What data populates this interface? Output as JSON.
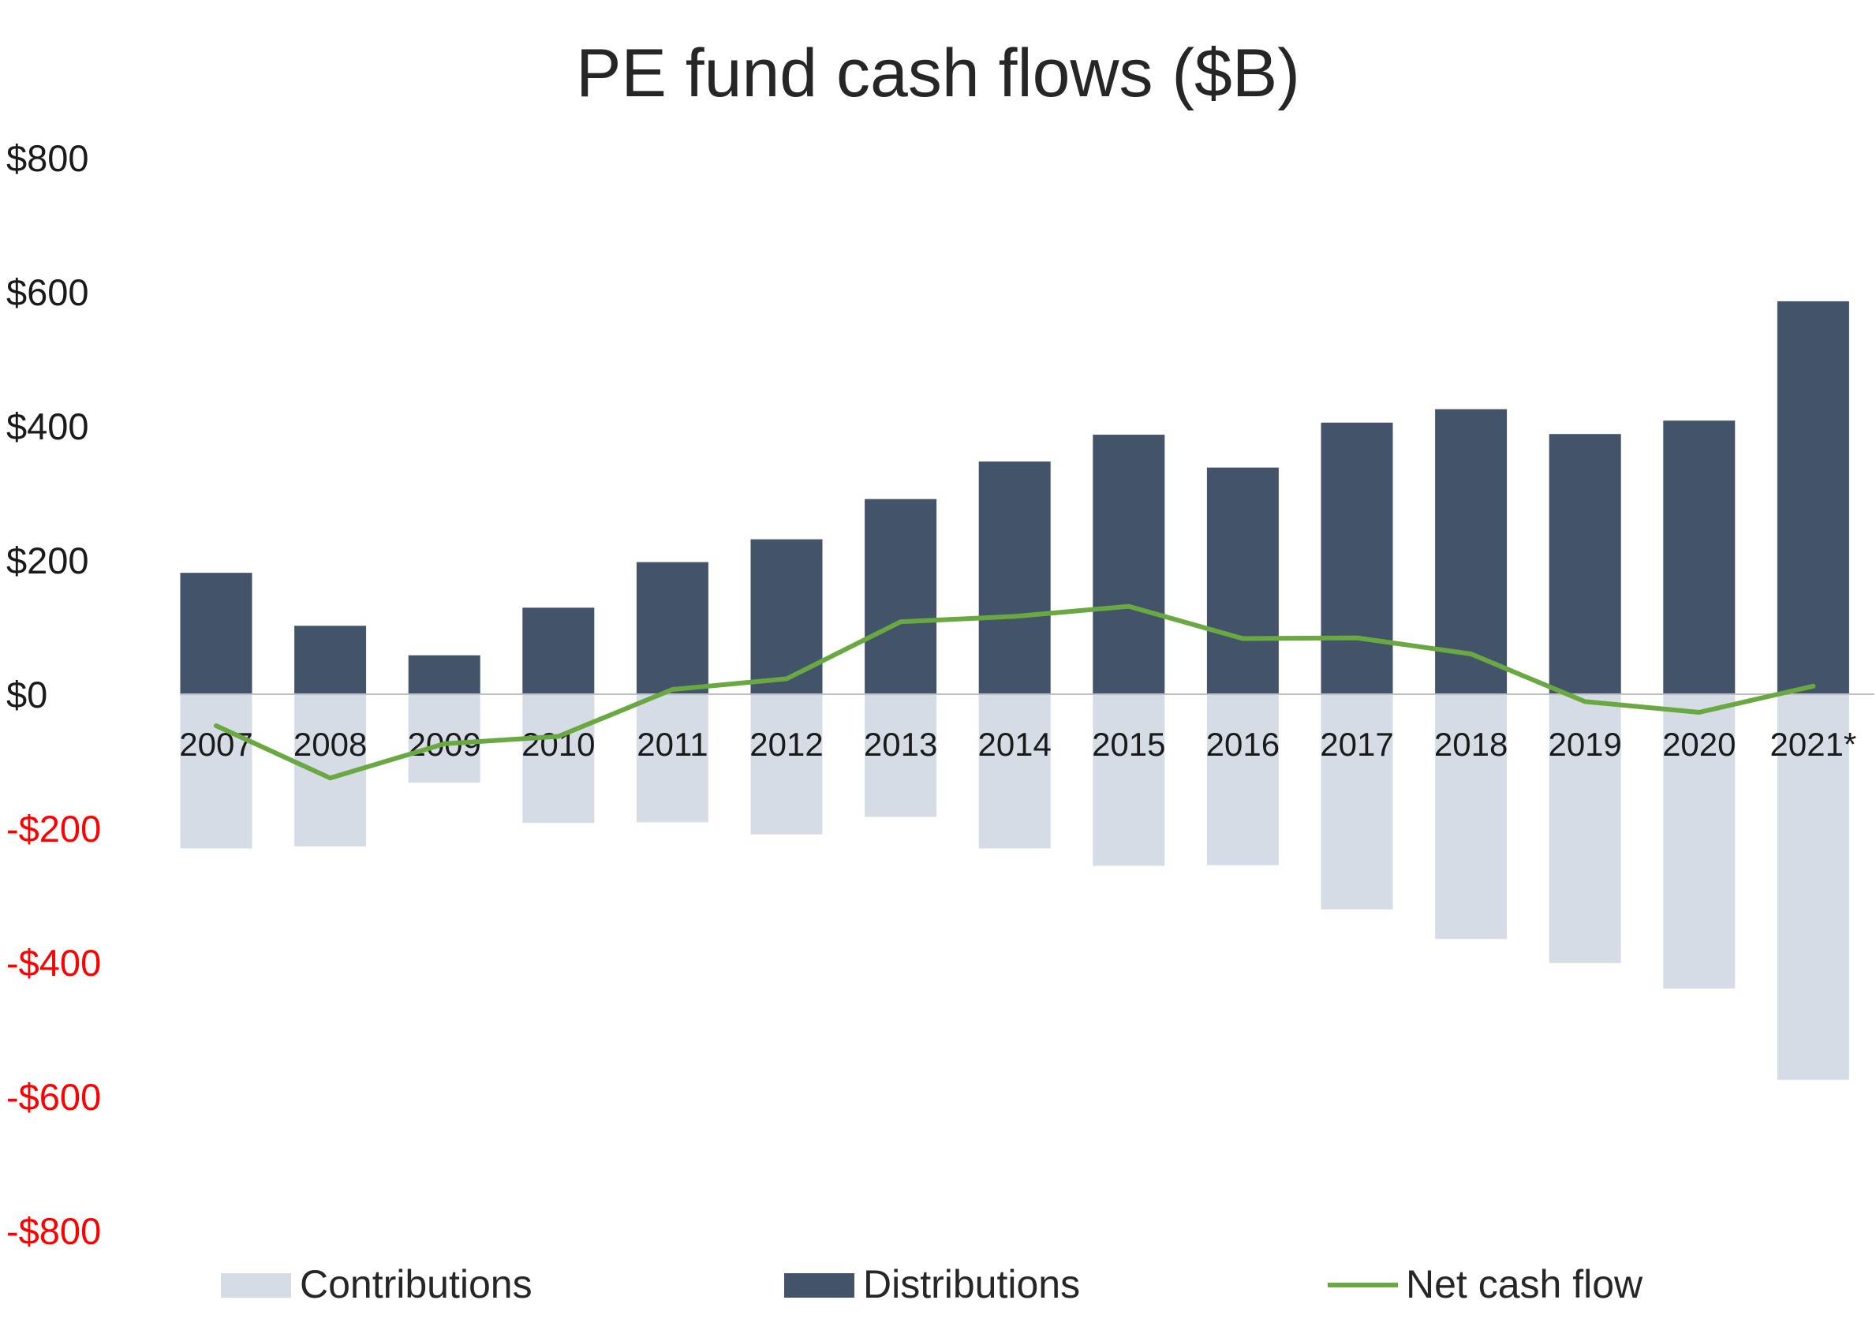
{
  "chart_data": {
    "type": "bar",
    "title": "PE fund cash flows ($B)",
    "xlabel": "",
    "ylabel": "",
    "categories": [
      "2007",
      "2008",
      "2009",
      "2010",
      "2011",
      "2012",
      "2013",
      "2014",
      "2015",
      "2016",
      "2017",
      "2018",
      "2019",
      "2020",
      "2021*"
    ],
    "series": [
      {
        "name": "Contributions",
        "kind": "bar",
        "color": "#d6dce6",
        "values": [
          -230,
          -227,
          -132,
          -192,
          -191,
          -209,
          -183,
          -230,
          -256,
          -255,
          -321,
          -365,
          -401,
          -439,
          -575
        ]
      },
      {
        "name": "Distributions",
        "kind": "bar",
        "color": "#42536a",
        "values": [
          181,
          102,
          58,
          129,
          197,
          231,
          291,
          347,
          387,
          338,
          405,
          425,
          388,
          408,
          586
        ]
      },
      {
        "name": "Net cash flow",
        "kind": "line",
        "color": "#6aa842",
        "values": [
          -47,
          -125,
          -74,
          -63,
          7,
          23,
          108,
          116,
          131,
          83,
          84,
          60,
          -11,
          -27,
          12
        ]
      }
    ],
    "ylim": [
      -800,
      800
    ],
    "yticks": [
      800,
      600,
      400,
      200,
      0,
      -200,
      -400,
      -600,
      -800
    ],
    "ytick_labels": [
      "$800",
      "$600",
      "$400",
      "$200",
      "$0",
      "-$200",
      "-$400",
      "-$600",
      "-$800"
    ],
    "negative_label_color": "#ff0000",
    "positive_label_color": "#1a1a1a",
    "grid": false,
    "legend_position": "bottom"
  }
}
